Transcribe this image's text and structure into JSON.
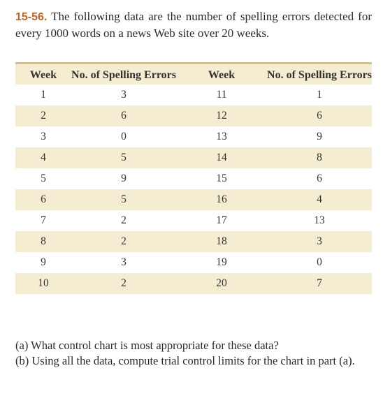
{
  "problem": {
    "number": "15-56.",
    "text": "The following data are the number of spelling errors detected for every 1000 words on a news Web site over 20 weeks."
  },
  "table": {
    "headers": [
      "Week",
      "No. of Spelling Errors",
      "Week",
      "No. of Spelling Errors"
    ],
    "rows": [
      [
        "1",
        "3",
        "11",
        "1"
      ],
      [
        "2",
        "6",
        "12",
        "6"
      ],
      [
        "3",
        "0",
        "13",
        "9"
      ],
      [
        "4",
        "5",
        "14",
        "8"
      ],
      [
        "5",
        "9",
        "15",
        "6"
      ],
      [
        "6",
        "5",
        "16",
        "4"
      ],
      [
        "7",
        "2",
        "17",
        "13"
      ],
      [
        "8",
        "2",
        "18",
        "3"
      ],
      [
        "9",
        "3",
        "19",
        "0"
      ],
      [
        "10",
        "2",
        "20",
        "7"
      ]
    ]
  },
  "questions": [
    {
      "label": "(a)",
      "text": "What control chart is most appropriate for these data?"
    },
    {
      "label": "(b)",
      "text": "Using all the data, compute trial control limits for the chart in part (a)."
    }
  ],
  "colors": {
    "accent_number": "#c8601f",
    "table_rule": "#d9c079",
    "table_band": "#f5edd2"
  }
}
